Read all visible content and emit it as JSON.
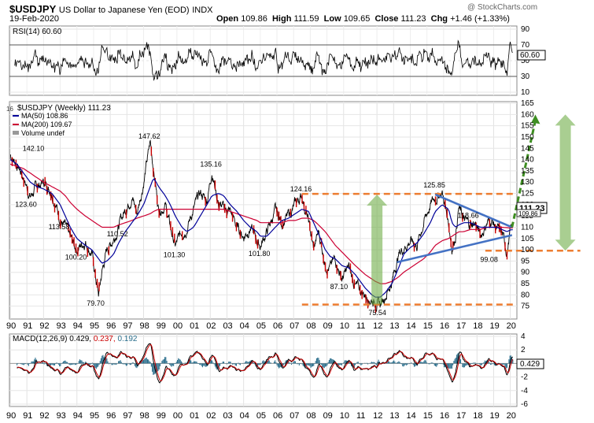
{
  "header": {
    "symbol": "$USDJPY",
    "description": "US Dollar to Japanese Yen (EOD)",
    "exchange": "INDX",
    "date": "19-Feb-2020",
    "watermark": "@ StockCharts.com",
    "open_label": "Open",
    "open": "109.86",
    "high_label": "High",
    "high": "111.59",
    "low_label": "Low",
    "low": "109.65",
    "close_label": "Close",
    "close": "111.23",
    "chg_label": "Chg",
    "chg": "+1.46 (+1.33%)"
  },
  "colors": {
    "price": "#000000",
    "down_bar": "#cc0000",
    "ma50": "#000099",
    "ma200": "#cc0033",
    "macd_signal": "#cc0000",
    "histogram": "#2a6e8c",
    "trendline": "#4472c4",
    "support_resistance": "#ed7d31",
    "arrow": "#70ad47"
  },
  "rsi_panel": {
    "label": "RSI(14) 60.60",
    "current": "60.60",
    "scale": [
      "90",
      "70",
      "50",
      "30",
      "10"
    ]
  },
  "price_panel": {
    "title": "$USDJPY (Weekly) 111.23",
    "ma50_label": "MA(50) 108.86",
    "ma200_label": "MA(200) 109.67",
    "volume_label": "Volume undef",
    "price_tag": "111.23",
    "ma_tag": "109.86",
    "top_left_label": "16"
  },
  "macd_panel": {
    "label_prefix": "MACD(12,26,9)",
    "macd": "0.429,",
    "signal": "0.237,",
    "histogram": "0.192",
    "current": "0.429",
    "scale": [
      "4",
      "2",
      "0",
      "-2",
      "-4",
      "-6"
    ]
  },
  "chart_data": {
    "type": "line",
    "title": "$USDJPY (Weekly) 111.23",
    "x_ticks": [
      "90",
      "91",
      "92",
      "93",
      "94",
      "95",
      "96",
      "97",
      "98",
      "99",
      "00",
      "01",
      "02",
      "03",
      "04",
      "05",
      "06",
      "07",
      "08",
      "09",
      "10",
      "11",
      "12",
      "13",
      "14",
      "15",
      "16",
      "17",
      "18",
      "19",
      "20"
    ],
    "x": [
      1990.0,
      1990.4,
      1990.8,
      1991.2,
      1991.6,
      1992.0,
      1992.5,
      1993.0,
      1993.3,
      1993.6,
      1994.0,
      1994.5,
      1994.9,
      1995.3,
      1995.5,
      1995.8,
      1996.2,
      1996.5,
      1996.9,
      1997.3,
      1997.6,
      1998.0,
      1998.4,
      1998.6,
      1998.9,
      1999.3,
      1999.6,
      1999.9,
      2000.3,
      2000.6,
      2001.0,
      2001.4,
      2001.8,
      2002.1,
      2002.5,
      2002.8,
      2003.2,
      2003.6,
      2004.0,
      2004.4,
      2004.8,
      2005.0,
      2005.4,
      2005.9,
      2006.3,
      2006.7,
      2007.1,
      2007.5,
      2007.9,
      2008.2,
      2008.5,
      2008.9,
      2009.2,
      2009.5,
      2009.9,
      2010.3,
      2010.7,
      2011.0,
      2011.3,
      2011.7,
      2011.9,
      2012.2,
      2012.5,
      2012.9,
      2013.3,
      2013.6,
      2014.0,
      2014.4,
      2014.8,
      2015.2,
      2015.5,
      2015.9,
      2016.3,
      2016.5,
      2016.7,
      2016.9,
      2017.2,
      2017.6,
      2017.9,
      2018.2,
      2018.6,
      2018.9,
      2019.2,
      2019.5,
      2019.8,
      2020.0,
      2020.15
    ],
    "series": [
      {
        "name": "$USDJPY",
        "values": [
          142.1,
          138,
          132,
          123.6,
          128,
          130,
          126,
          113.58,
          110,
          105,
          100.2,
          104,
          98,
          79.7,
          90,
          100,
          105,
          110.52,
          118,
          124,
          116,
          130,
          147.62,
          136,
          118,
          120,
          110,
          101.3,
          108,
          110,
          118,
          125,
          122,
          135.16,
          120,
          118,
          117,
          110,
          106,
          110,
          104,
          101.8,
          108,
          117,
          112,
          115,
          120,
          124.16,
          112,
          100,
          108,
          94,
          92,
          96,
          87.1,
          92,
          84,
          82,
          80,
          78,
          77,
          75.54,
          80,
          86,
          98,
          101,
          104,
          102,
          112,
          120,
          123,
          125.85,
          112,
          101,
          106,
          118.66,
          113,
          111,
          112,
          106,
          112,
          113,
          109,
          107,
          99.08,
          108,
          111.23
        ]
      },
      {
        "name": "MA(50)",
        "values": [
          140,
          138,
          134,
          130,
          128,
          127,
          125,
          120,
          115,
          110,
          105,
          102,
          100,
          96,
          94,
          95,
          98,
          103,
          108,
          112,
          115,
          120,
          128,
          132,
          128,
          124,
          120,
          115,
          110,
          108,
          110,
          115,
          120,
          124,
          125,
          124,
          120,
          117,
          113,
          110,
          108,
          106,
          106,
          110,
          113,
          114,
          116,
          118,
          117,
          112,
          107,
          100,
          97,
          96,
          93,
          92,
          89,
          86,
          83,
          80,
          79,
          79,
          81,
          85,
          92,
          98,
          101,
          103,
          107,
          112,
          117,
          120,
          118,
          112,
          110,
          111,
          112,
          112,
          111,
          110,
          110,
          110,
          110,
          109,
          108,
          108.86,
          108.86
        ]
      },
      {
        "name": "MA(200)",
        "values": [
          138,
          137,
          136,
          134,
          132,
          130,
          128,
          126,
          124,
          121,
          118,
          115,
          113,
          111,
          110,
          110,
          110,
          111,
          112,
          113,
          114,
          115,
          116,
          117,
          118,
          118,
          118,
          118,
          118,
          118,
          118,
          118,
          118,
          118,
          118,
          118,
          117,
          116,
          115,
          114,
          113,
          112,
          112,
          112,
          112,
          113,
          113,
          114,
          114,
          113,
          111,
          108,
          105,
          102,
          99,
          96,
          93,
          91,
          89,
          87,
          86,
          85,
          85,
          86,
          88,
          90,
          92,
          94,
          96,
          99,
          102,
          104,
          105,
          106,
          107,
          108,
          108,
          109,
          109,
          109,
          110,
          110,
          110,
          110,
          109.8,
          109.67,
          109.67
        ]
      }
    ],
    "rsi": {
      "label": "RSI(14)",
      "current": 60.6,
      "ylim": [
        10,
        90
      ],
      "overbought": 70,
      "oversold": 30
    },
    "macd": {
      "params": "12,26,9",
      "macd": 0.429,
      "signal": 0.237,
      "histogram": 0.192,
      "ylim": [
        -6,
        4
      ]
    },
    "annotations": [
      {
        "x": 1990.6,
        "y": 142.1,
        "text": "142.10"
      },
      {
        "x": 1991.0,
        "y": 123.6,
        "text": "123.60"
      },
      {
        "x": 1993.0,
        "y": 113.58,
        "text": "113.58"
      },
      {
        "x": 1994.0,
        "y": 100.2,
        "text": "100.20"
      },
      {
        "x": 1995.3,
        "y": 79.7,
        "text": "79.70"
      },
      {
        "x": 1996.5,
        "y": 110.52,
        "text": "110.52"
      },
      {
        "x": 1998.4,
        "y": 147.62,
        "text": "147.62"
      },
      {
        "x": 1999.9,
        "y": 101.3,
        "text": "101.30"
      },
      {
        "x": 2002.1,
        "y": 135.16,
        "text": "135.16"
      },
      {
        "x": 2005.0,
        "y": 101.8,
        "text": "101.80"
      },
      {
        "x": 2007.5,
        "y": 124.16,
        "text": "124.16"
      },
      {
        "x": 2009.9,
        "y": 87.1,
        "text": "87.10"
      },
      {
        "x": 2012.2,
        "y": 75.54,
        "text": "75.54"
      },
      {
        "x": 2015.5,
        "y": 125.85,
        "text": "125.85"
      },
      {
        "x": 2016.7,
        "y": 118.66,
        "text": "118.66"
      },
      {
        "x": 2018.9,
        "y": 99.08,
        "text": "99.08"
      }
    ],
    "price_ylim": [
      70,
      165
    ],
    "price_ticks": [
      165,
      160,
      155,
      150,
      145,
      140,
      135,
      130,
      125,
      120,
      115,
      110,
      105,
      100,
      95,
      90,
      85,
      80,
      75
    ],
    "horizontal_levels": [
      124.8,
      99.6,
      75.7
    ],
    "triangle_upper": [
      {
        "x": 2015.5,
        "y": 124.5
      },
      {
        "x": 2020.1,
        "y": 110
      }
    ],
    "triangle_lower": [
      {
        "x": 2013.2,
        "y": 94.5
      },
      {
        "x": 2020.1,
        "y": 106.5
      }
    ],
    "arrows": [
      {
        "kind": "up",
        "x": 2012.0,
        "from": 75.7,
        "to": 124.5
      },
      {
        "kind": "double",
        "x": 2023.3,
        "from": 99.6,
        "to": 160
      },
      {
        "kind": "dashed-up",
        "from_x": 2020.1,
        "from_y": 110,
        "to_x": 2021.5,
        "to_y": 160
      }
    ],
    "xlabel": "",
    "ylabel": ""
  }
}
